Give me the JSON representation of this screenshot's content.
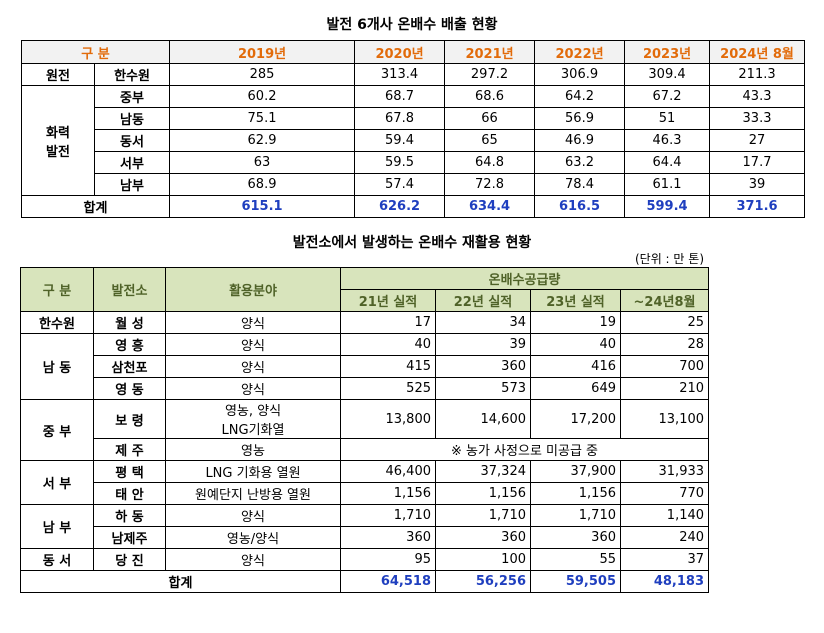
{
  "table1": {
    "title": "발전 6개사 온배수 배출 현황",
    "header": [
      "구 분",
      "2019년",
      "2020년",
      "2021년",
      "2022년",
      "2023년",
      "2024년 8월"
    ],
    "groups": [
      {
        "label": [
          "원전"
        ],
        "rows": [
          {
            "name": "한수원",
            "values": [
              285,
              313.4,
              297.2,
              306.9,
              309.4,
              211.3
            ]
          }
        ]
      },
      {
        "label": [
          "화력",
          "발전"
        ],
        "rows": [
          {
            "name": "중부",
            "values": [
              60.2,
              68.7,
              68.6,
              64.2,
              67.2,
              43.3
            ]
          },
          {
            "name": "남동",
            "values": [
              75.1,
              67.8,
              66,
              56.9,
              51,
              33.3
            ]
          },
          {
            "name": "동서",
            "values": [
              62.9,
              59.4,
              65,
              46.9,
              46.3,
              27
            ]
          },
          {
            "name": "서부",
            "values": [
              63,
              59.5,
              64.8,
              63.2,
              64.4,
              17.7
            ]
          },
          {
            "name": "남부",
            "values": [
              68.9,
              57.4,
              72.8,
              78.4,
              61.1,
              39
            ]
          }
        ]
      }
    ],
    "total": {
      "label": "합계",
      "values": [
        615.1,
        626.2,
        634.4,
        616.5,
        599.4,
        371.6
      ]
    }
  },
  "table2": {
    "title": "발전소에서 발생하는 온배수 재활용 현황",
    "unit": "(단위 : 만 톤)",
    "header": {
      "group": "구 분",
      "plant": "발전소",
      "use": "활용분야",
      "supply": "온배수공급량",
      "years": [
        "21년 실적",
        "22년 실적",
        "23년 실적",
        "~24년8월"
      ]
    },
    "groups": [
      {
        "label": "한수원",
        "rows": [
          {
            "plant": "월 성",
            "use": [
              "양식"
            ],
            "values": [
              "17",
              "34",
              "19",
              "25"
            ]
          }
        ]
      },
      {
        "label": "남 동",
        "rows": [
          {
            "plant": "영 흥",
            "use": [
              "양식"
            ],
            "values": [
              "40",
              "39",
              "40",
              "28"
            ]
          },
          {
            "plant": "삼천포",
            "use": [
              "양식"
            ],
            "values": [
              "415",
              "360",
              "416",
              "700"
            ]
          },
          {
            "plant": "영 동",
            "use": [
              "양식"
            ],
            "values": [
              "525",
              "573",
              "649",
              "210"
            ]
          }
        ]
      },
      {
        "label": "중 부",
        "rows": [
          {
            "plant": "보 령",
            "use": [
              "영농, 양식",
              "LNG기화열"
            ],
            "values": [
              "13,800",
              "14,600",
              "17,200",
              "13,100"
            ]
          },
          {
            "plant": "제 주",
            "use": [
              "영농"
            ],
            "note": "※ 농가 사정으로 미공급 중"
          }
        ]
      },
      {
        "label": "서 부",
        "rows": [
          {
            "plant": "평 택",
            "use": [
              "LNG 기화용 열원"
            ],
            "values": [
              "46,400",
              "37,324",
              "37,900",
              "31,933"
            ]
          },
          {
            "plant": "태 안",
            "use": [
              "원예단지 난방용 열원"
            ],
            "values": [
              "1,156",
              "1,156",
              "1,156",
              "770"
            ]
          }
        ]
      },
      {
        "label": "남 부",
        "rows": [
          {
            "plant": "하 동",
            "use": [
              "양식"
            ],
            "values": [
              "1,710",
              "1,710",
              "1,710",
              "1,140"
            ]
          },
          {
            "plant": "남제주",
            "use": [
              "영농/양식"
            ],
            "values": [
              "360",
              "360",
              "360",
              "240"
            ]
          }
        ]
      },
      {
        "label": "동 서",
        "rows": [
          {
            "plant": "당 진",
            "use": [
              "양식"
            ],
            "values": [
              "95",
              "100",
              "55",
              "37"
            ]
          }
        ]
      }
    ],
    "total": {
      "label": "합계",
      "values": [
        "64,518",
        "56,256",
        "59,505",
        "48,183"
      ]
    }
  }
}
